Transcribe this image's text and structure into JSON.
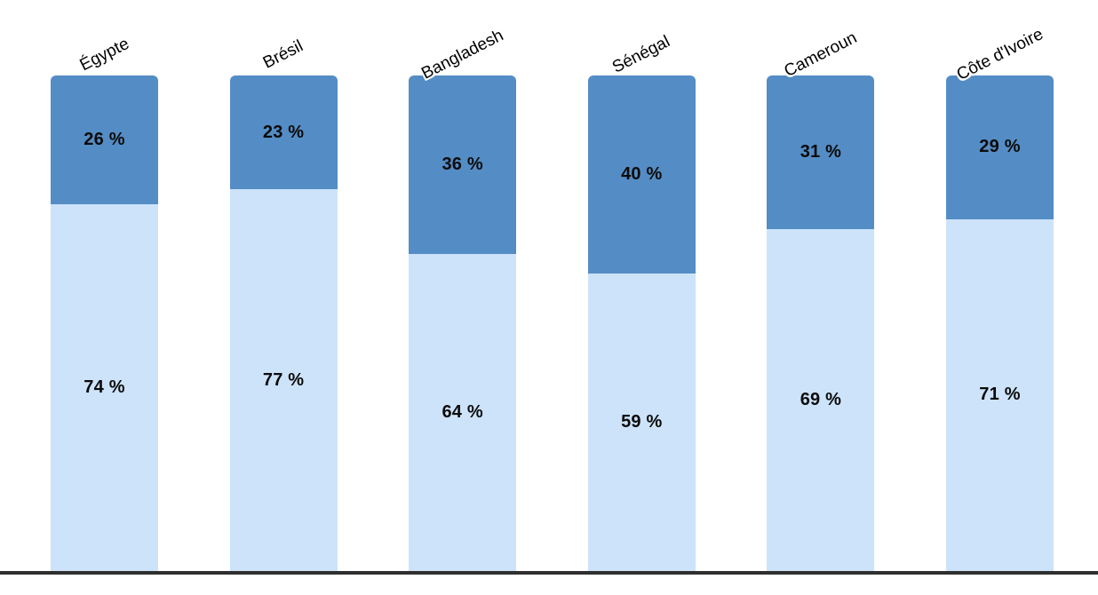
{
  "chart_data": {
    "type": "bar",
    "stacked": true,
    "orientation": "vertical",
    "title": "",
    "legend": false,
    "grid": false,
    "ylim": [
      0,
      100
    ],
    "categories": [
      "Égypte",
      "Brésil",
      "Bangladesh",
      "Sénégal",
      "Cameroun",
      "Côte d'Ivoire"
    ],
    "series": [
      {
        "name": "light-blue-bottom-segment",
        "color": "#CDE3FA",
        "values": [
          74,
          77,
          64,
          59,
          69,
          71
        ],
        "labels": [
          "74 %",
          "77 %",
          "64 %",
          "59 %",
          "69 %",
          "71 %"
        ]
      },
      {
        "name": "dark-blue-top-segment",
        "color": "#548DC5",
        "values": [
          26,
          23,
          36,
          40,
          31,
          29
        ],
        "labels": [
          "26 %",
          "23 %",
          "36 %",
          "40 %",
          "31 %",
          "29 %"
        ]
      }
    ],
    "baseline_color": "#2F2F2F",
    "value_label_color": "#0B0B0B",
    "category_label_color": "#000000"
  }
}
